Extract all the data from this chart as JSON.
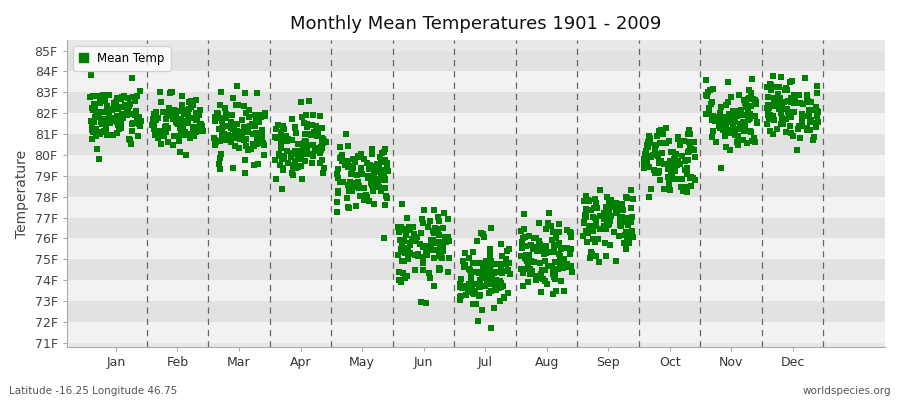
{
  "title": "Monthly Mean Temperatures 1901 - 2009",
  "ylabel": "Temperature",
  "xlabel_labels": [
    "Jan",
    "Feb",
    "Mar",
    "Apr",
    "May",
    "Jun",
    "Jul",
    "Aug",
    "Sep",
    "Oct",
    "Nov",
    "Dec"
  ],
  "ytick_labels": [
    "71F",
    "72F",
    "73F",
    "74F",
    "75F",
    "76F",
    "77F",
    "78F",
    "79F",
    "80F",
    "81F",
    "82F",
    "83F",
    "84F",
    "85F"
  ],
  "ytick_values": [
    71,
    72,
    73,
    74,
    75,
    76,
    77,
    78,
    79,
    80,
    81,
    82,
    83,
    84,
    85
  ],
  "ylim": [
    70.8,
    85.5
  ],
  "xlim": [
    -0.3,
    13.0
  ],
  "marker_color": "#008000",
  "marker_size": 4,
  "legend_label": "Mean Temp",
  "footer_left": "Latitude -16.25 Longitude 46.75",
  "footer_right": "worldspecies.org",
  "background_color": "#e8e8e8",
  "band_light": "#f2f2f2",
  "band_dark": "#e2e2e2",
  "monthly_means": [
    81.8,
    81.5,
    81.2,
    80.5,
    79.0,
    75.5,
    74.3,
    75.0,
    76.8,
    79.8,
    81.8,
    82.2
  ],
  "monthly_stds": [
    0.75,
    0.7,
    0.75,
    0.8,
    0.85,
    0.9,
    0.9,
    0.85,
    0.85,
    0.85,
    0.85,
    0.75
  ],
  "n_years": 109,
  "seed": 42,
  "vline_color": "#666666",
  "vline_positions": [
    1,
    2,
    3,
    4,
    5,
    6,
    7,
    8,
    9,
    10,
    11,
    12
  ]
}
